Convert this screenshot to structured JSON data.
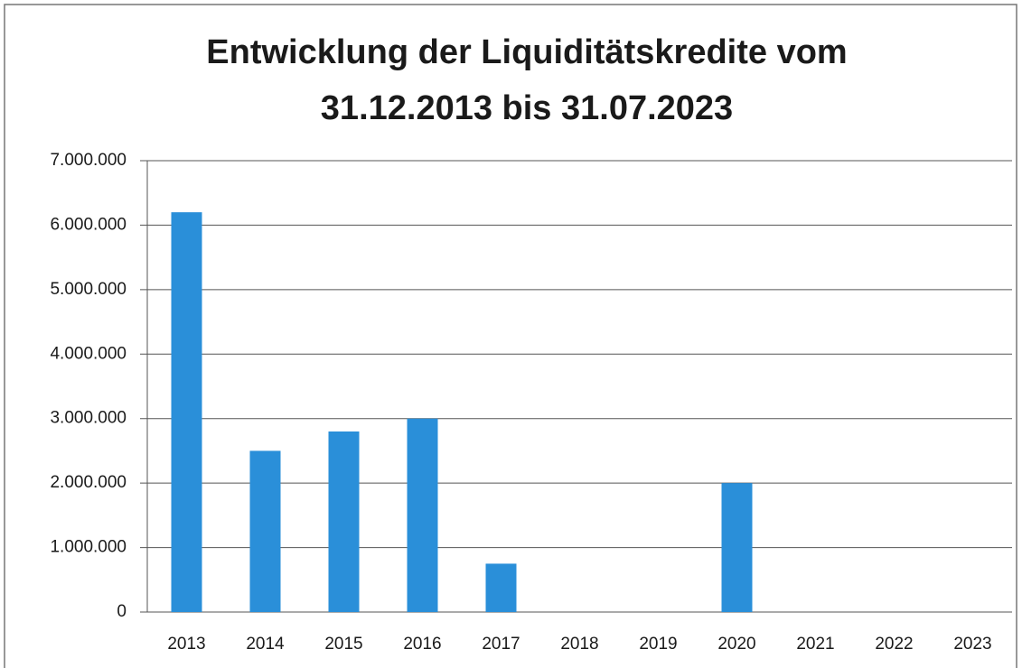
{
  "chart_data": {
    "type": "bar",
    "title": [
      "Entwicklung der Liquiditätskredite vom",
      "31.12.2013 bis 31.07.2023"
    ],
    "categories": [
      "2013",
      "2014",
      "2015",
      "2016",
      "2017",
      "2018",
      "2019",
      "2020",
      "2021",
      "2022",
      "2023"
    ],
    "values": [
      6200000,
      2500000,
      2800000,
      3000000,
      750000,
      0,
      0,
      2000000,
      0,
      0,
      0
    ],
    "color": "#2a8fd9",
    "ylim": [
      0,
      7000000
    ],
    "yticks": [
      0,
      {
        "value": 1000000,
        "label": "1.000.000"
      },
      {
        "value": 2000000,
        "label": "2.000.000"
      },
      {
        "value": 3000000,
        "label": "3.000.000"
      },
      {
        "value": 4000000,
        "label": "4.000.000"
      },
      {
        "value": 5000000,
        "label": "5.000.000"
      },
      {
        "value": 6000000,
        "label": "6.000.000"
      },
      {
        "value": 7000000,
        "label": "7.000.000"
      }
    ],
    "grid": true
  }
}
